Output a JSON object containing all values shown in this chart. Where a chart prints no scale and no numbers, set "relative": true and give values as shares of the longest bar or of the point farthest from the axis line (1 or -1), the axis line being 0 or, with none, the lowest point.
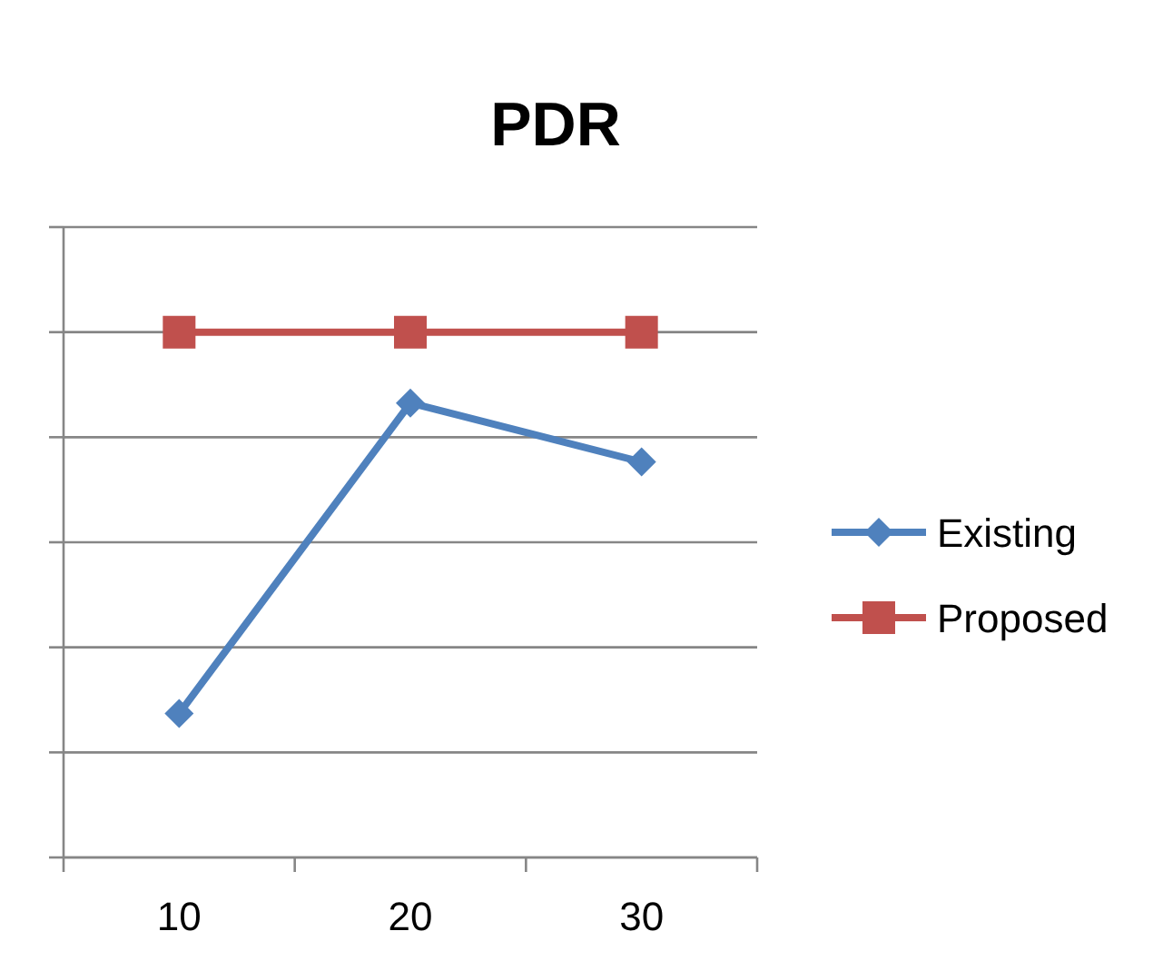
{
  "chart_data": {
    "type": "line",
    "title": "PDR",
    "categories": [
      "10",
      "20",
      "30"
    ],
    "relative": true,
    "grid": "y",
    "legend": "right",
    "series": [
      {
        "name": "Existing",
        "color": "#4f81bd",
        "marker": "diamond",
        "values": [
          0.274,
          0.865,
          0.753
        ]
      },
      {
        "name": "Proposed",
        "color": "#c0504d",
        "marker": "square",
        "values": [
          1,
          1,
          1
        ]
      }
    ]
  }
}
